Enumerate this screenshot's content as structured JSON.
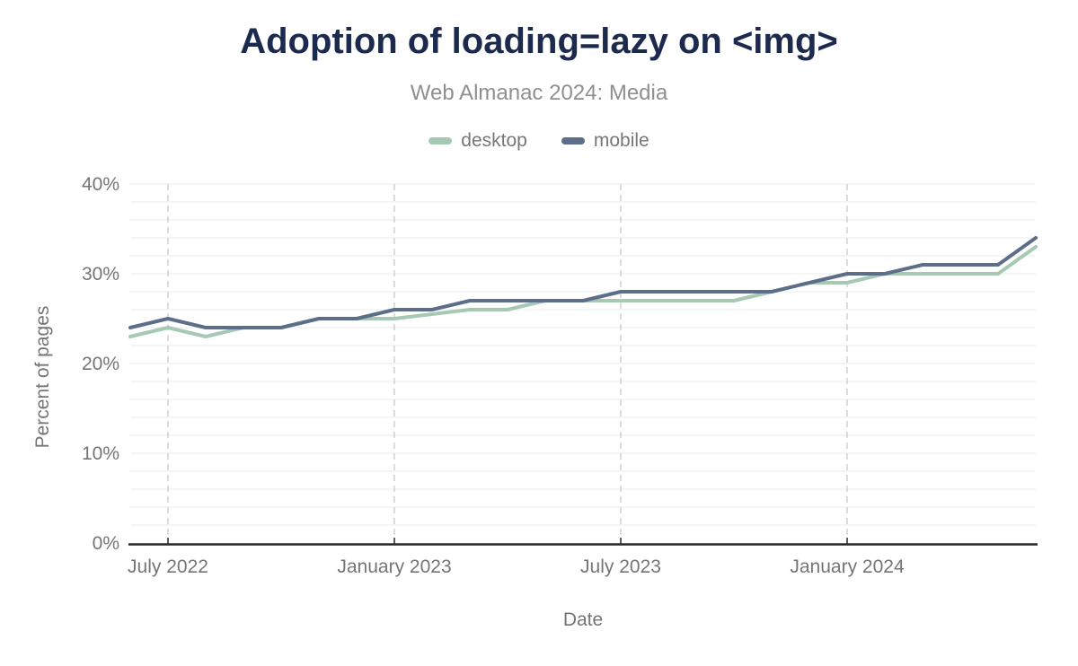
{
  "header": {
    "title": "Adoption of loading=lazy on <img>",
    "subtitle": "Web Almanac 2024: Media"
  },
  "chart_data": {
    "type": "line",
    "title": "Adoption of loading=lazy on <img>",
    "subtitle": "Web Almanac 2024: Media",
    "xlabel": "Date",
    "ylabel": "Percent of pages",
    "legend_position": "top",
    "legend": [
      "desktop",
      "mobile"
    ],
    "x": [
      "Jun 2022",
      "Jul 2022",
      "Aug 2022",
      "Sep 2022",
      "Oct 2022",
      "Nov 2022",
      "Dec 2022",
      "Jan 2023",
      "Feb 2023",
      "Mar 2023",
      "Apr 2023",
      "May 2023",
      "Jun 2023",
      "Jul 2023",
      "Aug 2023",
      "Sep 2023",
      "Oct 2023",
      "Nov 2023",
      "Dec 2023",
      "Jan 2024",
      "Feb 2024",
      "Mar 2024",
      "Apr 2024",
      "May 2024",
      "Jun 2024"
    ],
    "series": [
      {
        "name": "desktop",
        "color": "#a7c8b2",
        "values": [
          23,
          24,
          23,
          24,
          24,
          25,
          25,
          25,
          25.5,
          26,
          26,
          27,
          27,
          27,
          27,
          27,
          27,
          28,
          29,
          29,
          30,
          30,
          30,
          30,
          33
        ]
      },
      {
        "name": "mobile",
        "color": "#5c6e8a",
        "values": [
          24,
          25,
          24,
          24,
          24,
          25,
          25,
          26,
          26,
          27,
          27,
          27,
          27,
          28,
          28,
          28,
          28,
          28,
          29,
          30,
          30,
          31,
          31,
          31,
          34
        ]
      }
    ],
    "x_tick_labels": [
      "July 2022",
      "January 2023",
      "July 2023",
      "January 2024"
    ],
    "x_tick_indices": [
      1,
      7,
      13,
      19
    ],
    "y_ticks": [
      0,
      10,
      20,
      30,
      40
    ],
    "y_tick_suffix": "%",
    "y_minor_step": 2,
    "ylim": [
      0,
      40
    ],
    "grid": "horizontal solid minor lines every 2%, dashed vertical lines at labeled dates"
  },
  "colors": {
    "title": "#1c2b4d",
    "subtitle": "#8f8f8f",
    "axis_text": "#757575",
    "legend_text": "#777777",
    "axis_line": "#26282b",
    "grid_horizontal": "#efefef",
    "grid_vertical": "#c9c9c9",
    "background": "#ffffff"
  }
}
